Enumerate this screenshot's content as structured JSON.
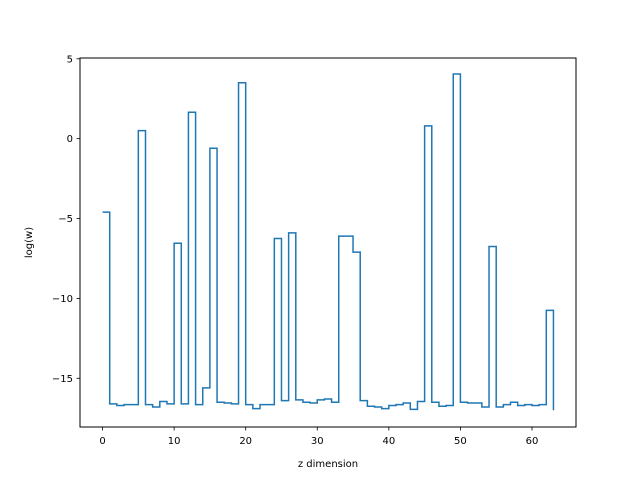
{
  "chart_data": {
    "type": "line",
    "drawstyle": "steps-post",
    "title": "",
    "xlabel": "z dimension",
    "ylabel": "log(w)",
    "xlim": [
      -3.15,
      66.15
    ],
    "ylim": [
      -18.05,
      5.05
    ],
    "xticks": [
      0,
      10,
      20,
      30,
      40,
      50,
      60
    ],
    "yticks": [
      5,
      0,
      -5,
      -10,
      -15
    ],
    "ytick_labels": [
      "5",
      "0",
      "−5",
      "−10",
      "−15"
    ],
    "grid": false,
    "color": "#1f77b4",
    "series": [
      {
        "values": [
          -4.6,
          -16.6,
          -16.7,
          -16.65,
          -16.65,
          0.5,
          -16.65,
          -16.8,
          -16.45,
          -16.6,
          -6.55,
          -16.6,
          1.65,
          -16.65,
          -15.6,
          -0.6,
          -16.5,
          -16.55,
          -16.6,
          3.5,
          -16.65,
          -16.9,
          -16.65,
          -16.65,
          -6.25,
          -16.4,
          -5.9,
          -16.35,
          -16.5,
          -16.55,
          -16.35,
          -16.3,
          -16.5,
          -6.1,
          -6.1,
          -7.1,
          -16.4,
          -16.75,
          -16.8,
          -16.9,
          -16.7,
          -16.65,
          -16.55,
          -16.95,
          -16.45,
          0.8,
          -16.5,
          -16.75,
          -16.7,
          4.05,
          -16.5,
          -16.55,
          -16.55,
          -16.8,
          -6.75,
          -16.8,
          -16.65,
          -16.5,
          -16.7,
          -16.65,
          -16.7,
          -16.65,
          -10.75,
          -17.0
        ]
      }
    ]
  }
}
